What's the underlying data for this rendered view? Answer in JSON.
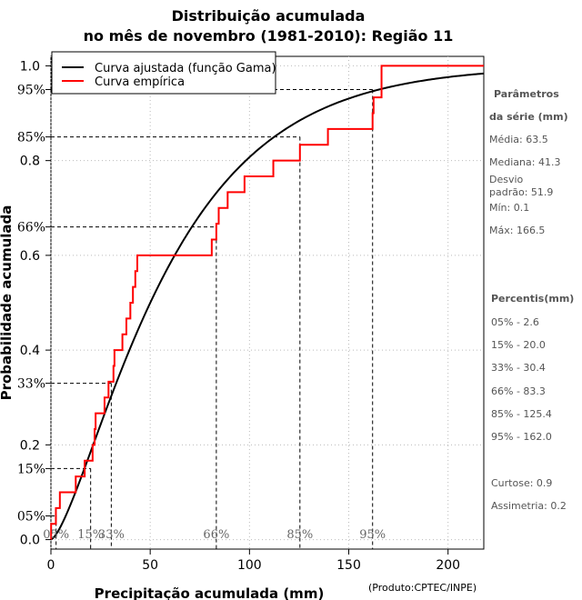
{
  "chart_data": {
    "type": "line",
    "title": [
      "Distribuição acumulada",
      "no mês de novembro (1981-2010): Região 11"
    ],
    "xlabel": "Precipitação acumulada (mm)",
    "ylabel": "Probabilidade acumulada",
    "credit": "(Produto:CPTEC/INPE)",
    "xlim": [
      0,
      218
    ],
    "ylim": [
      -0.02,
      1.02
    ],
    "x_ticks": [
      "0",
      "50",
      "100",
      "150",
      "200"
    ],
    "x_tick_values": [
      0,
      50,
      100,
      150,
      200
    ],
    "y_ticks": [
      "0.0",
      "0.2",
      "0.4",
      "0.6",
      "0.8",
      "1.0"
    ],
    "y_tick_values": [
      0.0,
      0.2,
      0.4,
      0.6,
      0.8,
      1.0
    ],
    "percentile_y_ticks": [
      "05%",
      "15%",
      "33%",
      "66%",
      "85%",
      "95%"
    ],
    "percentile_y_values": [
      0.05,
      0.15,
      0.33,
      0.66,
      0.85,
      0.95
    ],
    "percentile_x_labels": [
      "05%",
      "15%",
      "33%",
      "66%",
      "85%",
      "95%"
    ],
    "percentile_x_values": [
      2.6,
      20.0,
      30.4,
      83.3,
      125.4,
      162.0
    ],
    "legend": {
      "position": "top-left",
      "entries": [
        {
          "label": "Curva ajustada (função Gama)",
          "color": "#000000"
        },
        {
          "label": "Curva empírica",
          "color": "#ff0000"
        }
      ]
    },
    "series": [
      {
        "name": "Curva ajustada (função Gama)",
        "color": "#000000",
        "gamma_shape": 1.5,
        "gamma_scale": 42.3
      },
      {
        "name": "Curva empírica",
        "color": "#ff0000",
        "step_points": [
          [
            0.1,
            0.0333
          ],
          [
            2.5,
            0.0667
          ],
          [
            4.5,
            0.1
          ],
          [
            12.5,
            0.1333
          ],
          [
            17.0,
            0.1667
          ],
          [
            21.0,
            0.2
          ],
          [
            22.0,
            0.2333
          ],
          [
            22.5,
            0.2667
          ],
          [
            27.0,
            0.3
          ],
          [
            29.0,
            0.3333
          ],
          [
            31.5,
            0.3667
          ],
          [
            32.0,
            0.4
          ],
          [
            36.0,
            0.4333
          ],
          [
            38.0,
            0.4667
          ],
          [
            40.0,
            0.5
          ],
          [
            41.3,
            0.5333
          ],
          [
            42.5,
            0.5667
          ],
          [
            43.5,
            0.6
          ],
          [
            81.0,
            0.6333
          ],
          [
            83.3,
            0.6667
          ],
          [
            84.5,
            0.7
          ],
          [
            89.0,
            0.7333
          ],
          [
            97.5,
            0.7667
          ],
          [
            112.0,
            0.8
          ],
          [
            125.4,
            0.8333
          ],
          [
            139.5,
            0.8667
          ],
          [
            162.0,
            0.9
          ],
          [
            162.5,
            0.9333
          ],
          [
            166.5,
            1.0
          ]
        ]
      }
    ]
  },
  "side_panel": {
    "params_heading": [
      "Parâmetros",
      "da série (mm)"
    ],
    "stats": [
      "Média: 63.5",
      "Mediana: 41.3",
      "Desvio",
      "padrão: 51.9",
      "Mín: 0.1",
      "Máx: 166.5"
    ],
    "percentis_heading": "Percentis(mm)",
    "percentis": [
      "05% - 2.6",
      "15% - 20.0",
      "33% - 30.4",
      "66% - 83.3",
      "85% - 125.4",
      "95% - 162.0"
    ],
    "curtose": "Curtose: 0.9",
    "assimetria": "Assimetria: 0.2"
  }
}
